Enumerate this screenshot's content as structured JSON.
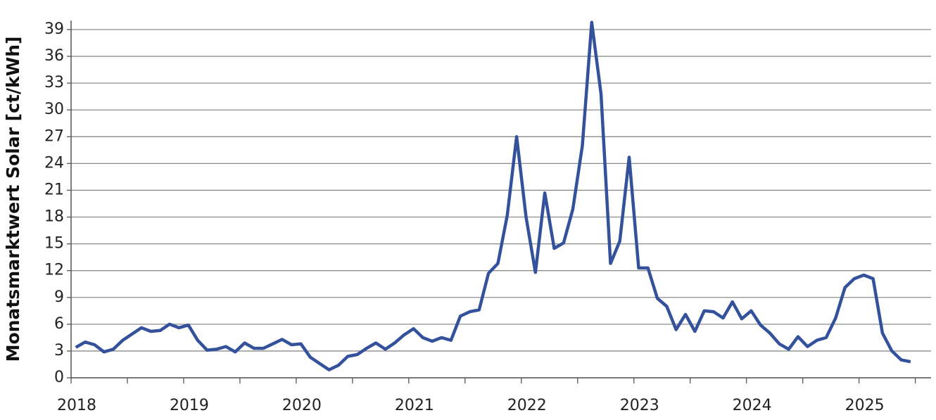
{
  "chart_data": {
    "type": "line",
    "y_label": "Monatsmarktwert Solar [ct/kWh]",
    "x": [
      2018.042,
      2018.125,
      2018.208,
      2018.292,
      2018.375,
      2018.458,
      2018.542,
      2018.625,
      2018.708,
      2018.792,
      2018.875,
      2018.958,
      2019.042,
      2019.125,
      2019.208,
      2019.292,
      2019.375,
      2019.458,
      2019.542,
      2019.625,
      2019.708,
      2019.792,
      2019.875,
      2019.958,
      2020.042,
      2020.125,
      2020.208,
      2020.292,
      2020.375,
      2020.458,
      2020.542,
      2020.625,
      2020.708,
      2020.792,
      2020.875,
      2020.958,
      2021.042,
      2021.125,
      2021.208,
      2021.292,
      2021.375,
      2021.458,
      2021.542,
      2021.625,
      2021.708,
      2021.792,
      2021.875,
      2021.958,
      2022.042,
      2022.125,
      2022.208,
      2022.292,
      2022.375,
      2022.458,
      2022.542,
      2022.625,
      2022.708,
      2022.792,
      2022.875,
      2022.958,
      2023.042,
      2023.125,
      2023.208,
      2023.292,
      2023.375,
      2023.458,
      2023.542,
      2023.625,
      2023.708,
      2023.792,
      2023.875,
      2023.958,
      2024.042,
      2024.125,
      2024.208,
      2024.292,
      2024.375,
      2024.458,
      2024.542,
      2024.625,
      2024.708,
      2024.792,
      2024.875,
      2024.958,
      2025.042,
      2025.125,
      2025.208,
      2025.292,
      2025.375,
      2025.458
    ],
    "values": [
      3.4,
      4.0,
      3.7,
      2.9,
      3.2,
      4.2,
      4.9,
      5.6,
      5.2,
      5.3,
      6.0,
      5.6,
      5.9,
      4.2,
      3.1,
      3.2,
      3.5,
      2.9,
      3.9,
      3.3,
      3.3,
      3.8,
      4.3,
      3.7,
      3.8,
      2.3,
      1.6,
      0.9,
      1.4,
      2.4,
      2.6,
      3.3,
      3.9,
      3.2,
      3.9,
      4.8,
      5.5,
      4.5,
      4.1,
      4.5,
      4.2,
      6.9,
      7.4,
      7.6,
      11.7,
      12.8,
      18.2,
      27.0,
      18.0,
      11.8,
      20.7,
      14.5,
      15.1,
      18.9,
      26.0,
      39.8,
      31.8,
      12.8,
      15.3,
      24.7,
      12.3,
      12.3,
      8.9,
      8.0,
      5.4,
      7.1,
      5.2,
      7.5,
      7.4,
      6.7,
      8.5,
      6.6,
      7.5,
      5.9,
      5.0,
      3.8,
      3.2,
      4.6,
      3.5,
      4.2,
      4.5,
      6.7,
      10.1,
      11.1,
      11.5,
      11.1,
      5.0,
      3.0,
      2.0,
      1.8
    ],
    "color": "#34529c",
    "xlim": [
      2018,
      2025.64
    ],
    "xticks": [
      2018,
      2019,
      2020,
      2021,
      2022,
      2023,
      2024,
      2025
    ],
    "xminorticks": [
      2018.5,
      2019.5,
      2020.5,
      2021.5,
      2022.5,
      2023.5,
      2024.5,
      2025.5
    ],
    "ylim": [
      0,
      40
    ],
    "yticks": [
      0,
      3,
      6,
      9,
      12,
      15,
      18,
      21,
      24,
      27,
      30,
      33,
      36,
      39
    ],
    "grid": true
  }
}
